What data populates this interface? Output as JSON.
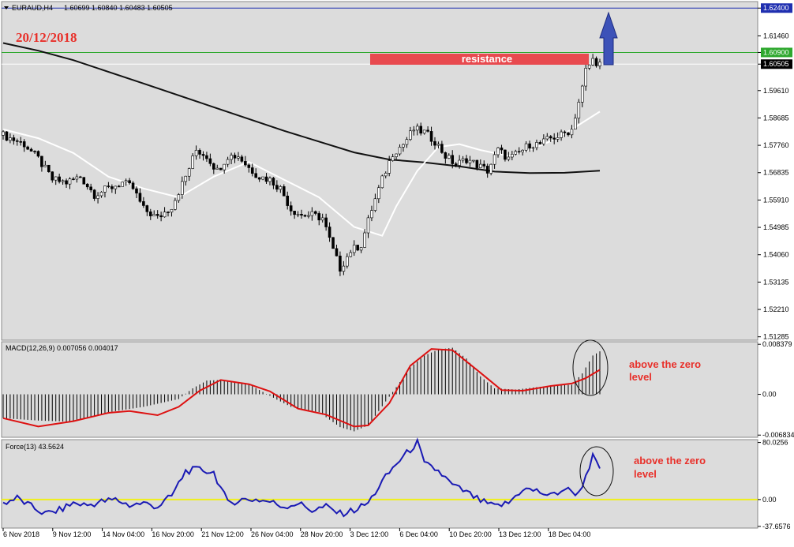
{
  "chart_header": {
    "symbol": "EURAUD,H4",
    "ohlc": "1.60699 1.60840 1.60483 1.60505"
  },
  "date_title": "20/12/2018",
  "resistance_label": "resistance",
  "macd_header": "MACD(12,26,9) 0.007056 0.004017",
  "force_header": "Force(13) 43.5624",
  "macd_annotation": [
    "above the zero",
    "level"
  ],
  "force_annotation": [
    "above the zero",
    "level"
  ],
  "colors": {
    "chart_bg": "#dcdcdc",
    "resistance_bar": "#e84a4f",
    "upper_level": "#1f2fb0",
    "resistance_line": "#2ea82e",
    "current_price_line": "#ffffff",
    "long_ma": "#111111",
    "short_ma": "#ffffff",
    "arrow": "#3d52b8",
    "macd_signal": "#dd1111",
    "force_line": "#1a1ab4",
    "force_zero": "#f0f01a",
    "annotation_text": "#e8302a"
  },
  "chart_data": [
    {
      "type": "candlestick",
      "panel": "price",
      "y_ticks": [
        "1.62400",
        "1.61460",
        "1.60900",
        "1.60505",
        "1.59610",
        "1.58685",
        "1.57760",
        "1.56835",
        "1.55910",
        "1.54985",
        "1.54060",
        "1.53135",
        "1.52210",
        "1.51285"
      ],
      "x_ticks": [
        "6 Nov 2018",
        "9 Nov 12:00",
        "14 Nov 04:00",
        "16 Nov 20:00",
        "21 Nov 12:00",
        "26 Nov 04:00",
        "28 Nov 20:00",
        "3 Dec 12:00",
        "6 Dec 04:00",
        "10 Dec 20:00",
        "13 Dec 12:00",
        "18 Dec 04:00"
      ],
      "ylim": [
        1.5117,
        1.6262
      ],
      "levels": {
        "upper": 1.624,
        "resistance": 1.609,
        "current": 1.60505
      },
      "close_path": [
        [
          0,
          1.581
        ],
        [
          6,
          1.578
        ],
        [
          10,
          1.573
        ],
        [
          14,
          1.566
        ],
        [
          18,
          1.565
        ],
        [
          22,
          1.567
        ],
        [
          26,
          1.561
        ],
        [
          30,
          1.563
        ],
        [
          34,
          1.565
        ],
        [
          37,
          1.563
        ],
        [
          40,
          1.556
        ],
        [
          44,
          1.553
        ],
        [
          48,
          1.557
        ],
        [
          52,
          1.567
        ],
        [
          55,
          1.576
        ],
        [
          58,
          1.574
        ],
        [
          61,
          1.569
        ],
        [
          64,
          1.574
        ],
        [
          67,
          1.574
        ],
        [
          70,
          1.57
        ],
        [
          73,
          1.567
        ],
        [
          76,
          1.566
        ],
        [
          79,
          1.563
        ],
        [
          82,
          1.556
        ],
        [
          85,
          1.554
        ],
        [
          88,
          1.554
        ],
        [
          91,
          1.553
        ],
        [
          94,
          1.542
        ],
        [
          96,
          1.536
        ],
        [
          99,
          1.542
        ],
        [
          102,
          1.544
        ],
        [
          105,
          1.556
        ],
        [
          108,
          1.566
        ],
        [
          111,
          1.575
        ],
        [
          114,
          1.578
        ],
        [
          117,
          1.583
        ],
        [
          120,
          1.582
        ],
        [
          123,
          1.579
        ],
        [
          126,
          1.574
        ],
        [
          129,
          1.571
        ],
        [
          132,
          1.573
        ],
        [
          135,
          1.571
        ],
        [
          138,
          1.569
        ],
        [
          141,
          1.576
        ],
        [
          144,
          1.573
        ],
        [
          147,
          1.575
        ],
        [
          150,
          1.578
        ],
        [
          153,
          1.578
        ],
        [
          156,
          1.58
        ],
        [
          159,
          1.581
        ],
        [
          162,
          1.583
        ],
        [
          165,
          1.597
        ],
        [
          166,
          1.603
        ],
        [
          168,
          1.6065
        ],
        [
          170,
          1.6051
        ]
      ],
      "long_ma_path": [
        [
          0,
          1.6122
        ],
        [
          10,
          1.6096
        ],
        [
          20,
          1.6064
        ],
        [
          40,
          1.5985
        ],
        [
          60,
          1.5905
        ],
        [
          80,
          1.5825
        ],
        [
          100,
          1.5752
        ],
        [
          110,
          1.5728
        ],
        [
          120,
          1.5718
        ],
        [
          130,
          1.5705
        ],
        [
          140,
          1.5687
        ],
        [
          150,
          1.5682
        ],
        [
          160,
          1.5683
        ],
        [
          170,
          1.569
        ]
      ],
      "short_ma_path": [
        [
          0,
          1.583
        ],
        [
          10,
          1.58
        ],
        [
          20,
          1.575
        ],
        [
          30,
          1.567
        ],
        [
          40,
          1.563
        ],
        [
          50,
          1.56
        ],
        [
          60,
          1.567
        ],
        [
          70,
          1.572
        ],
        [
          80,
          1.566
        ],
        [
          90,
          1.56
        ],
        [
          100,
          1.55
        ],
        [
          108,
          1.547
        ],
        [
          112,
          1.557
        ],
        [
          118,
          1.569
        ],
        [
          124,
          1.577
        ],
        [
          130,
          1.578
        ],
        [
          136,
          1.576
        ],
        [
          144,
          1.574
        ],
        [
          150,
          1.576
        ],
        [
          156,
          1.579
        ],
        [
          162,
          1.583
        ],
        [
          170,
          1.589
        ]
      ]
    },
    {
      "type": "bar",
      "panel": "macd",
      "name": "MACD(12,26,9)",
      "y_ticks": [
        "0.008379",
        "0.00",
        "-0.006834"
      ],
      "ylim": [
        -0.0072,
        0.0088
      ],
      "histogram_path": [
        [
          0,
          -0.004
        ],
        [
          10,
          -0.0044
        ],
        [
          20,
          -0.0046
        ],
        [
          30,
          -0.003
        ],
        [
          40,
          -0.0021
        ],
        [
          50,
          -0.0008
        ],
        [
          54,
          0.001
        ],
        [
          58,
          0.0023
        ],
        [
          62,
          0.0024
        ],
        [
          66,
          0.002
        ],
        [
          70,
          0.0017
        ],
        [
          74,
          0.0004
        ],
        [
          78,
          -0.0009
        ],
        [
          82,
          -0.0021
        ],
        [
          90,
          -0.003
        ],
        [
          96,
          -0.0055
        ],
        [
          100,
          -0.0062
        ],
        [
          104,
          -0.0052
        ],
        [
          108,
          -0.002
        ],
        [
          112,
          0.0012
        ],
        [
          116,
          0.0045
        ],
        [
          120,
          0.0065
        ],
        [
          124,
          0.0075
        ],
        [
          128,
          0.0078
        ],
        [
          132,
          0.006
        ],
        [
          136,
          0.003
        ],
        [
          140,
          0.001
        ],
        [
          146,
          0.0008
        ],
        [
          152,
          0.0012
        ],
        [
          158,
          0.0015
        ],
        [
          162,
          0.0016
        ],
        [
          165,
          0.0035
        ],
        [
          168,
          0.0065
        ],
        [
          170,
          0.0072
        ]
      ],
      "signal_path": [
        [
          0,
          -0.004
        ],
        [
          10,
          -0.0054
        ],
        [
          20,
          -0.0045
        ],
        [
          30,
          -0.0031
        ],
        [
          36,
          -0.0028
        ],
        [
          44,
          -0.0035
        ],
        [
          50,
          -0.0021
        ],
        [
          56,
          0.0006
        ],
        [
          62,
          0.0024
        ],
        [
          70,
          0.0017
        ],
        [
          76,
          0.0005
        ],
        [
          84,
          -0.0024
        ],
        [
          92,
          -0.0034
        ],
        [
          100,
          -0.0054
        ],
        [
          104,
          -0.0052
        ],
        [
          110,
          -0.0015
        ],
        [
          116,
          0.0048
        ],
        [
          122,
          0.0076
        ],
        [
          128,
          0.0074
        ],
        [
          136,
          0.0036
        ],
        [
          142,
          0.0007
        ],
        [
          148,
          0.0006
        ],
        [
          156,
          0.0014
        ],
        [
          162,
          0.0018
        ],
        [
          166,
          0.0027
        ],
        [
          170,
          0.0041
        ]
      ]
    },
    {
      "type": "line",
      "panel": "force",
      "name": "Force(13)",
      "y_ticks": [
        "80.0256",
        "0.00",
        "-37.6576"
      ],
      "ylim": [
        -40,
        84
      ],
      "zero_line": 0,
      "force_path": [
        [
          0,
          -5
        ],
        [
          4,
          2
        ],
        [
          8,
          -10
        ],
        [
          12,
          -20
        ],
        [
          16,
          -15
        ],
        [
          20,
          -5
        ],
        [
          24,
          -8
        ],
        [
          28,
          -3
        ],
        [
          32,
          0
        ],
        [
          36,
          -8
        ],
        [
          40,
          -5
        ],
        [
          44,
          -10
        ],
        [
          48,
          5
        ],
        [
          52,
          40
        ],
        [
          56,
          42
        ],
        [
          60,
          38
        ],
        [
          64,
          -5
        ],
        [
          68,
          0
        ],
        [
          72,
          0
        ],
        [
          76,
          -3
        ],
        [
          80,
          -10
        ],
        [
          84,
          -5
        ],
        [
          88,
          -15
        ],
        [
          92,
          -10
        ],
        [
          96,
          -20
        ],
        [
          100,
          -15
        ],
        [
          104,
          -5
        ],
        [
          108,
          25
        ],
        [
          112,
          50
        ],
        [
          116,
          70
        ],
        [
          118,
          80
        ],
        [
          120,
          50
        ],
        [
          124,
          40
        ],
        [
          128,
          20
        ],
        [
          132,
          10
        ],
        [
          136,
          -2
        ],
        [
          140,
          -10
        ],
        [
          144,
          -5
        ],
        [
          148,
          15
        ],
        [
          152,
          12
        ],
        [
          156,
          5
        ],
        [
          160,
          15
        ],
        [
          164,
          8
        ],
        [
          168,
          60
        ],
        [
          170,
          43.5624
        ]
      ]
    }
  ]
}
